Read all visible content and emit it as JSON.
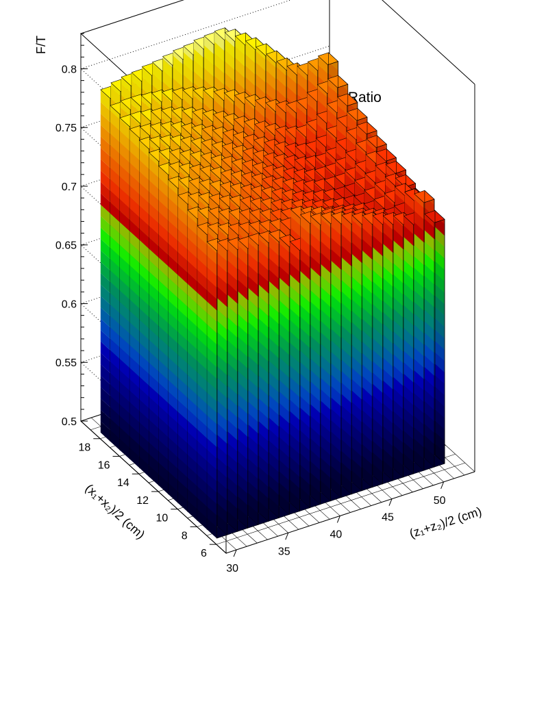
{
  "chart_data": {
    "type": "lego3d",
    "title": "S116-1a: 2D Fast-Over-Total Ratio",
    "zlabel": "F/T",
    "xlabel": "(z₁+z₂)/2 (cm)",
    "ylabel": "(x₁+x₂)/2 (cm)",
    "x_range": [
      29,
      53
    ],
    "y_range": [
      5,
      20
    ],
    "z_range": [
      0.5,
      0.83
    ],
    "x_ticks": [
      30,
      35,
      40,
      45,
      50
    ],
    "y_ticks": [
      6,
      8,
      10,
      12,
      14,
      16,
      18
    ],
    "z_ticks": [
      0.5,
      0.55,
      0.6,
      0.65,
      0.7,
      0.75,
      0.8
    ],
    "x_tick_labels": [
      "30",
      "35",
      "40",
      "45",
      "50"
    ],
    "y_tick_labels": [
      "6",
      "8",
      "10",
      "12",
      "14",
      "16",
      "18"
    ],
    "z_tick_labels": [
      "0.5",
      "0.55",
      "0.6",
      "0.65",
      "0.7",
      "0.75",
      "0.8"
    ],
    "x_bins": [
      30,
      31,
      32,
      33,
      34,
      35,
      36,
      37,
      38,
      39,
      40,
      41,
      42,
      43,
      44,
      45,
      46,
      47,
      48,
      49,
      50,
      51
    ],
    "y_bins": [
      7,
      8,
      9,
      10,
      11,
      12,
      13,
      14,
      15,
      16,
      17,
      18
    ],
    "values": [
      [
        0.745,
        0.742,
        0.74,
        0.738,
        0.738,
        0.737,
        0.735,
        0.728,
        0.722,
        0.742,
        0.738,
        0.736,
        0.733,
        0.73,
        0.727,
        0.724,
        0.721,
        0.718,
        0.715,
        0.712,
        0.728,
        0.708
      ],
      [
        0.751,
        0.748,
        0.745,
        0.742,
        0.74,
        0.738,
        0.736,
        0.734,
        0.732,
        0.739,
        0.736,
        0.733,
        0.729,
        0.726,
        0.723,
        0.72,
        0.717,
        0.714,
        0.712,
        0.713,
        0.722,
        0.708
      ],
      [
        0.757,
        0.754,
        0.751,
        0.747,
        0.744,
        0.741,
        0.738,
        0.735,
        0.732,
        0.73,
        0.728,
        0.725,
        0.722,
        0.72,
        0.718,
        0.716,
        0.714,
        0.713,
        0.714,
        0.716,
        0.719,
        0.712
      ],
      [
        0.762,
        0.759,
        0.756,
        0.752,
        0.748,
        0.745,
        0.741,
        0.737,
        0.734,
        0.73,
        0.727,
        0.724,
        0.721,
        0.718,
        0.716,
        0.714,
        0.713,
        0.712,
        0.714,
        0.717,
        0.72,
        0.716
      ],
      [
        0.768,
        0.765,
        0.761,
        0.757,
        0.753,
        0.749,
        0.745,
        0.741,
        0.737,
        0.733,
        0.729,
        0.725,
        0.721,
        0.718,
        0.716,
        0.714,
        0.713,
        0.713,
        0.715,
        0.718,
        0.722,
        0.72
      ],
      [
        0.772,
        0.77,
        0.766,
        0.762,
        0.758,
        0.754,
        0.749,
        0.745,
        0.741,
        0.737,
        0.732,
        0.728,
        0.724,
        0.72,
        0.717,
        0.715,
        0.714,
        0.714,
        0.716,
        0.719,
        0.724,
        0.723
      ],
      [
        0.776,
        0.774,
        0.771,
        0.767,
        0.763,
        0.759,
        0.754,
        0.75,
        0.745,
        0.741,
        0.736,
        0.731,
        0.727,
        0.723,
        0.719,
        0.716,
        0.715,
        0.715,
        0.717,
        0.721,
        0.726,
        0.727
      ],
      [
        0.779,
        0.777,
        0.775,
        0.772,
        0.768,
        0.764,
        0.76,
        0.755,
        0.751,
        0.746,
        0.741,
        0.736,
        0.731,
        0.727,
        0.723,
        0.719,
        0.717,
        0.716,
        0.718,
        0.723,
        0.729,
        0.731
      ],
      [
        0.781,
        0.78,
        0.778,
        0.776,
        0.773,
        0.769,
        0.765,
        0.761,
        0.757,
        0.752,
        0.747,
        0.742,
        0.737,
        0.732,
        0.727,
        0.723,
        0.72,
        0.719,
        0.721,
        0.726,
        0.732,
        0.735
      ],
      [
        0.783,
        0.783,
        0.782,
        0.78,
        0.778,
        0.775,
        0.772,
        0.768,
        0.764,
        0.76,
        0.755,
        0.75,
        0.745,
        0.74,
        0.735,
        0.73,
        0.727,
        0.725,
        0.727,
        0.731,
        0.737,
        0.74
      ],
      [
        0.786,
        0.787,
        0.787,
        0.786,
        0.785,
        0.783,
        0.781,
        0.779,
        0.776,
        0.773,
        0.769,
        0.765,
        0.76,
        0.755,
        0.75,
        0.745,
        0.741,
        0.738,
        0.738,
        0.742,
        0.746,
        0.748
      ],
      [
        0.792,
        0.795,
        0.797,
        0.798,
        0.8,
        0.801,
        0.803,
        0.805,
        0.806,
        0.808,
        0.809,
        0.81,
        0.806,
        0.8,
        0.793,
        0.785,
        0.776,
        0.767,
        0.76,
        0.757,
        0.758,
        0.76
      ]
    ],
    "palette": [
      "#000033",
      "#00003d",
      "#000052",
      "#000066",
      "#00007a",
      "#00008f",
      "#0000a8",
      "#0000c2",
      "#0033cc",
      "#004dcc",
      "#0066b3",
      "#007a99",
      "#008c80",
      "#009966",
      "#00b24d",
      "#00cc33",
      "#00e61a",
      "#1aff00",
      "#66e600",
      "#99cc00",
      "#cc0000",
      "#e61a00",
      "#ff3300",
      "#ff4d00",
      "#ff6600",
      "#ff8000",
      "#ff9900",
      "#ffb300",
      "#ffcc00",
      "#ffe600",
      "#fff200",
      "#ffff66",
      "#ffffb3",
      "#ffffff"
    ],
    "grid": true
  }
}
